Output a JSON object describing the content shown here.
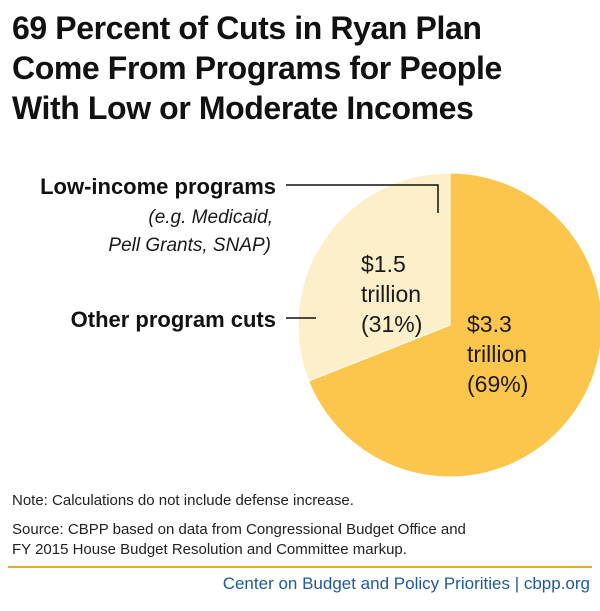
{
  "title_lines": [
    "69 Percent of Cuts in Ryan Plan",
    "Come From Programs for People",
    "With Low or Moderate Incomes"
  ],
  "chart_data": {
    "type": "pie",
    "title": "69 Percent of Cuts in Ryan Plan Come From Programs for People With Low or Moderate Incomes",
    "slices": [
      {
        "name": "Low-income programs",
        "sub_label": [
          "(e.g. Medicaid,",
          "Pell Grants, SNAP)"
        ],
        "value": 3.3,
        "unit": "trillion",
        "percent": 69,
        "label_lines": [
          "$3.3",
          "trillion",
          "(69%)"
        ],
        "color": "#fcc64c"
      },
      {
        "name": "Other program cuts",
        "sub_label": [],
        "value": 1.5,
        "unit": "trillion",
        "percent": 31,
        "label_lines": [
          "$1.5",
          "trillion",
          "(31%)"
        ],
        "color": "#fdefc9"
      }
    ]
  },
  "note": "Note: Calculations do not include defense increase.",
  "source_lines": [
    "Source: CBPP based on data from Congressional Budget Office and",
    "FY 2015 House Budget Resolution and Committee markup."
  ],
  "footer": "Center on Budget and Policy Priorities | cbpp.org",
  "colors": {
    "accent": "#f0a91a",
    "footer_text": "#1f5a99"
  }
}
